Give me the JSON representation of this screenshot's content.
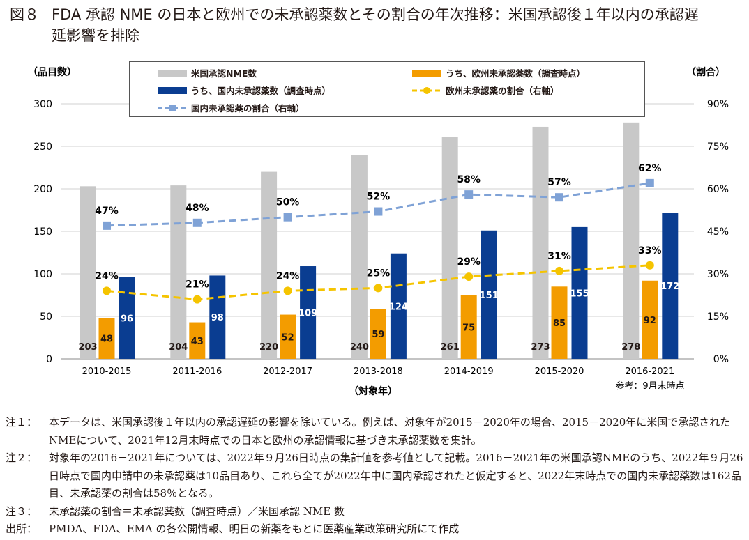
{
  "title": {
    "figure_no": "図８",
    "line1": "FDA 承認 NME の日本と欧州での未承認薬数とその割合の年次推移：米国承認後１年以内の承認遅",
    "line2": "延影響を排除"
  },
  "chart_data": {
    "type": "bar+line",
    "categories": [
      "2010-2015",
      "2011-2016",
      "2012-2017",
      "2013-2018",
      "2014-2019",
      "2015-2020",
      "2016-2021"
    ],
    "series": [
      {
        "name": "米国承認NME数",
        "type": "bar",
        "axis": "left",
        "color": "#c8c8c8",
        "values": [
          203,
          204,
          220,
          240,
          261,
          273,
          278
        ]
      },
      {
        "name": "うち、欧州未承認薬数（調査時点）",
        "type": "bar",
        "axis": "left",
        "color": "#f39c00",
        "values": [
          48,
          43,
          52,
          59,
          75,
          85,
          92
        ]
      },
      {
        "name": "うち、国内未承認薬数（調査時点）",
        "type": "bar",
        "axis": "left",
        "color": "#0a3d91",
        "values": [
          96,
          98,
          109,
          124,
          151,
          155,
          172
        ]
      },
      {
        "name": "欧州未承認薬の割合（右軸）",
        "type": "line",
        "axis": "right",
        "color": "#f5c400",
        "marker": "circle",
        "dash": true,
        "values": [
          24,
          21,
          24,
          25,
          29,
          31,
          33
        ]
      },
      {
        "name": "国内未承認薬の割合（右軸）",
        "type": "line",
        "axis": "right",
        "color": "#7fa2d6",
        "marker": "square",
        "dash": true,
        "values": [
          47,
          48,
          50,
          52,
          58,
          57,
          62
        ]
      }
    ],
    "ylabel": "（品目数）",
    "y2label": "（割合）",
    "xlabel": "（対象年）",
    "ylim": [
      0,
      300
    ],
    "yticks": [
      0,
      50,
      100,
      150,
      200,
      250,
      300
    ],
    "y2lim": [
      0,
      90
    ],
    "y2ticks": [
      "0%",
      "15%",
      "30%",
      "45%",
      "60%",
      "75%",
      "90%"
    ],
    "annotation": "参考：9月末時点",
    "grid": true,
    "legend": "top"
  },
  "notes": [
    {
      "key": "注１：",
      "text": "本データは、米国承認後１年以内の承認遅延の影響を除いている。例えば、対象年が2015－2020年の場合、2015－2020年に米国で承認されたNMEについて、2021年12月末時点での日本と欧州の承認情報に基づき未承認薬数を集計。"
    },
    {
      "key": "注２：",
      "text": "対象年の2016－2021年については、2022年９月26日時点の集計値を参考値として記載。2016－2021年の米国承認NMEのうち、2022年９月26日時点で国内申請中の未承認薬は10品目あり、これら全てが2022年中に国内承認されたと仮定すると、2022年末時点での国内未承認薬数は162品目、未承認薬の割合は58％となる。"
    },
    {
      "key": "注３：",
      "text": "未承認薬の割合＝未承認薬数（調査時点）／米国承認 NME 数"
    },
    {
      "key": "出所：",
      "text": "PMDA、FDA、EMA の各公開情報、明日の新薬をもとに医薬産業政策研究所にて作成"
    }
  ]
}
